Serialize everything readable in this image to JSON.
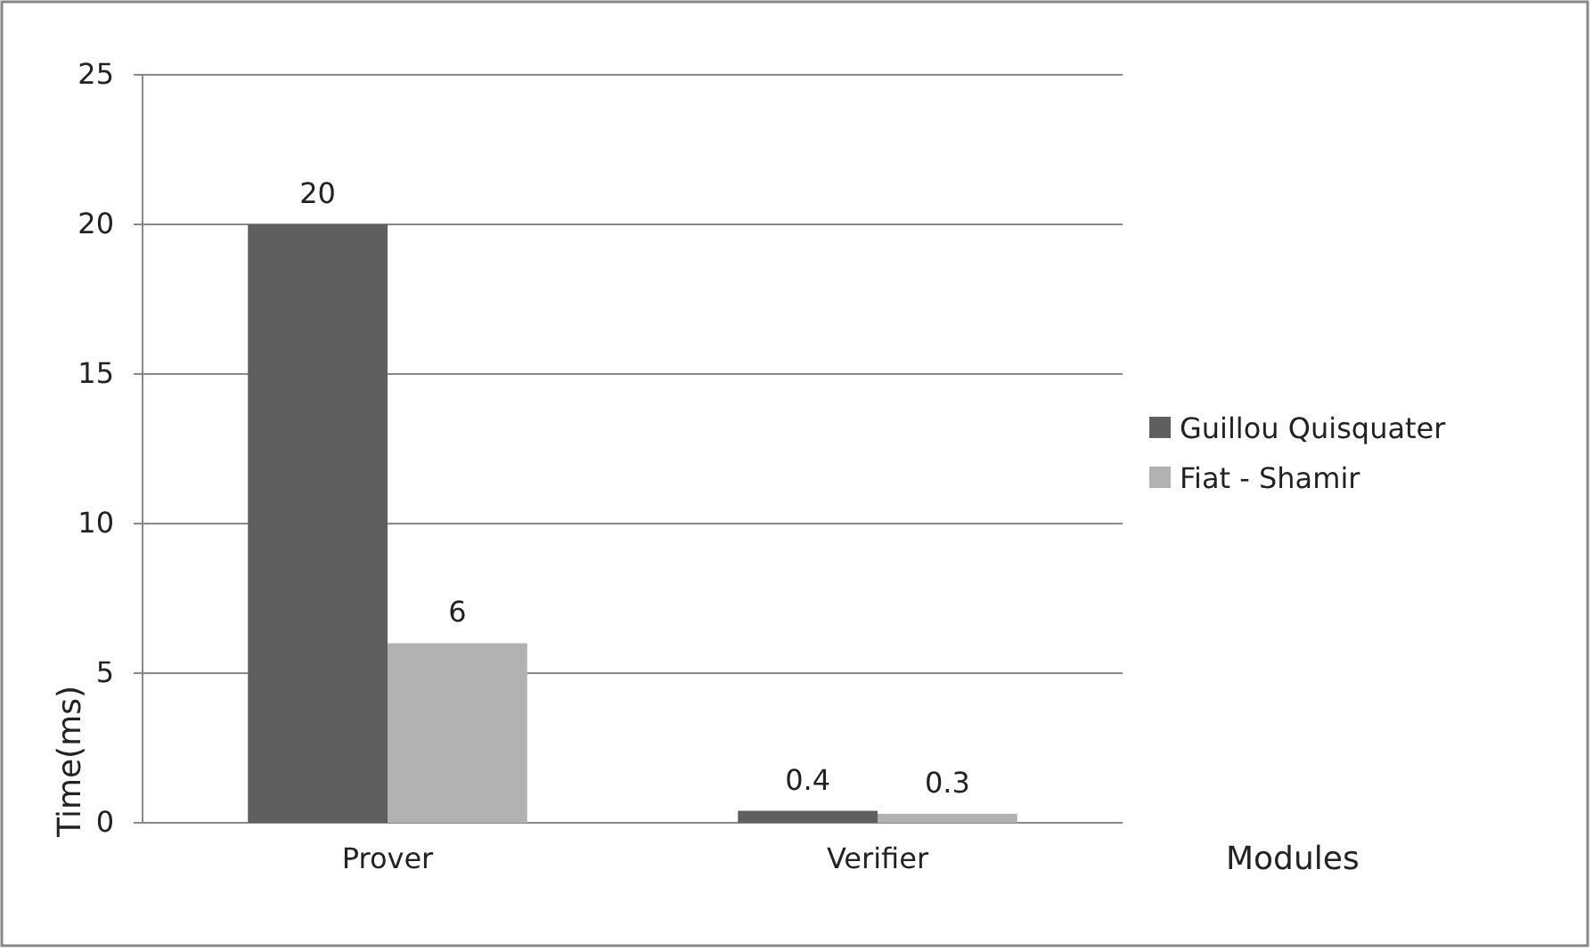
{
  "chart_data": {
    "type": "bar",
    "categories": [
      "Prover",
      "Verifier"
    ],
    "xlabel": "Modules",
    "ylabel": "Time(ms)",
    "series": [
      {
        "name": "Guillou Quisquater",
        "color": "#5f5f5f",
        "values": [
          20,
          0.4
        ]
      },
      {
        "name": "Fiat - Shamir",
        "color": "#b2b2b2",
        "values": [
          6,
          0.3
        ]
      }
    ],
    "ylim": [
      0,
      25
    ],
    "yticks": [
      0,
      5,
      10,
      15,
      20,
      25
    ],
    "grid": "y",
    "legend": "right",
    "data_labels": true
  }
}
